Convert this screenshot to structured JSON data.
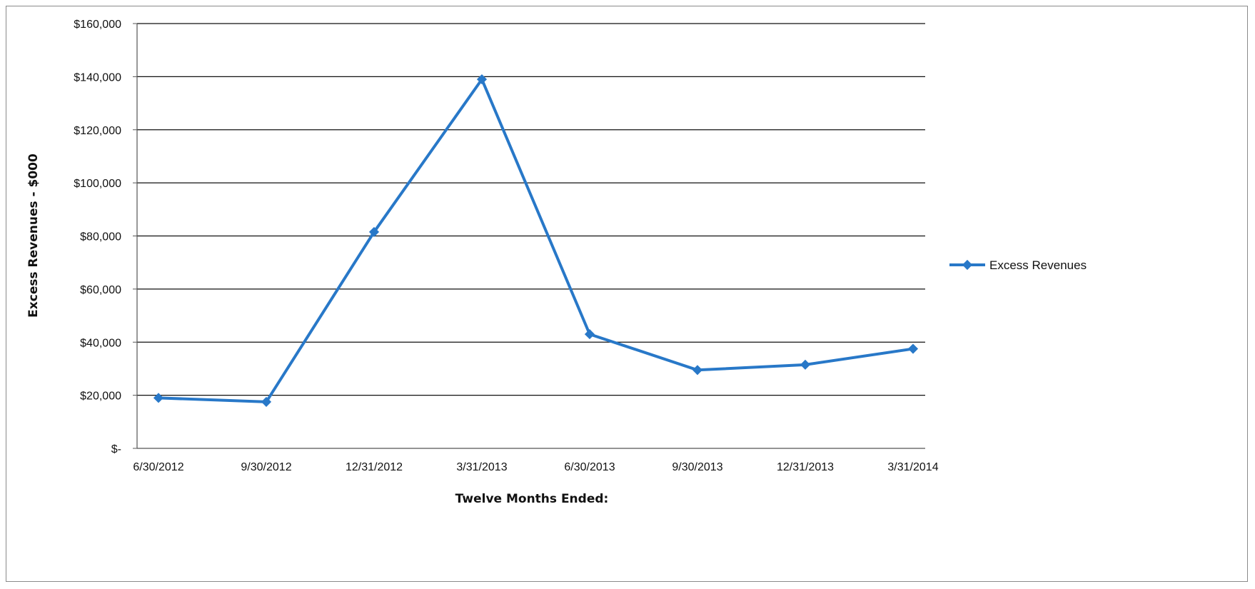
{
  "chart_data": {
    "type": "line",
    "title": "",
    "xlabel": "Twelve Months Ended:",
    "ylabel": "Excess Revenues - $000",
    "categories": [
      "6/30/2012",
      "9/30/2012",
      "12/31/2012",
      "3/31/2013",
      "6/30/2013",
      "9/30/2013",
      "12/31/2013",
      "3/31/2014"
    ],
    "series": [
      {
        "name": "Excess Revenues",
        "color": "#2878c8",
        "marker": "diamond",
        "values": [
          19000,
          17500,
          81500,
          139000,
          43000,
          29500,
          31500,
          37500
        ]
      }
    ],
    "ylim": [
      0,
      160000
    ],
    "yticks": [
      0,
      20000,
      40000,
      60000,
      80000,
      100000,
      120000,
      140000,
      160000
    ],
    "ytick_labels": [
      "$-",
      "$20,000",
      "$40,000",
      "$60,000",
      "$80,000",
      "$100,000",
      "$120,000",
      "$140,000",
      "$160,000"
    ],
    "grid": true,
    "legend_position": "right"
  }
}
